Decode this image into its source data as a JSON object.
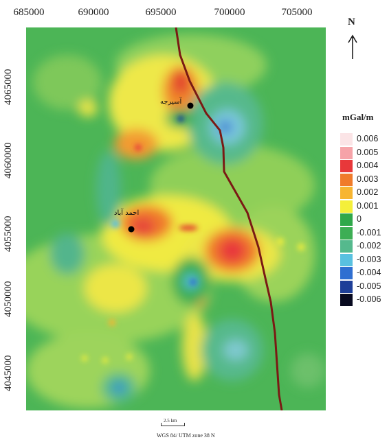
{
  "axes": {
    "x_ticks": [
      "685000",
      "690000",
      "695000",
      "700000",
      "705000"
    ],
    "y_ticks": [
      "4065000",
      "4060000",
      "4055000",
      "4050000",
      "4045000"
    ]
  },
  "north_arrow": {
    "letter": "N",
    "icon": "north-arrow-icon"
  },
  "legend": {
    "title": "mGal/m",
    "items": [
      {
        "label": "0.006",
        "color": "#fbe4e6"
      },
      {
        "label": "0.005",
        "color": "#f6a3a8"
      },
      {
        "label": "0.004",
        "color": "#e8383a"
      },
      {
        "label": "0.003",
        "color": "#f07b2a"
      },
      {
        "label": "0.002",
        "color": "#f7b531"
      },
      {
        "label": "0.001",
        "color": "#f4ef3a"
      },
      {
        "label": "0",
        "color": "#2fa84a"
      },
      {
        "label": "-0.001",
        "color": "#3dae54"
      },
      {
        "label": "-0.002",
        "color": "#55b98d"
      },
      {
        "label": "-0.003",
        "color": "#59c1e0"
      },
      {
        "label": "-0.004",
        "color": "#2f6fd1"
      },
      {
        "label": "-0.005",
        "color": "#1e3f98"
      },
      {
        "label": "-0.006",
        "color": "#080a20"
      }
    ]
  },
  "places": [
    {
      "name": "آسیرجه"
    },
    {
      "name": "احمد آباد"
    }
  ],
  "scale_bar": {
    "label": "2.5 km"
  },
  "crs_label": "WGS 84/ UTM zone 38 N",
  "colors": {
    "fault_line": "#7a1a14",
    "background_green": "#4cb556"
  }
}
